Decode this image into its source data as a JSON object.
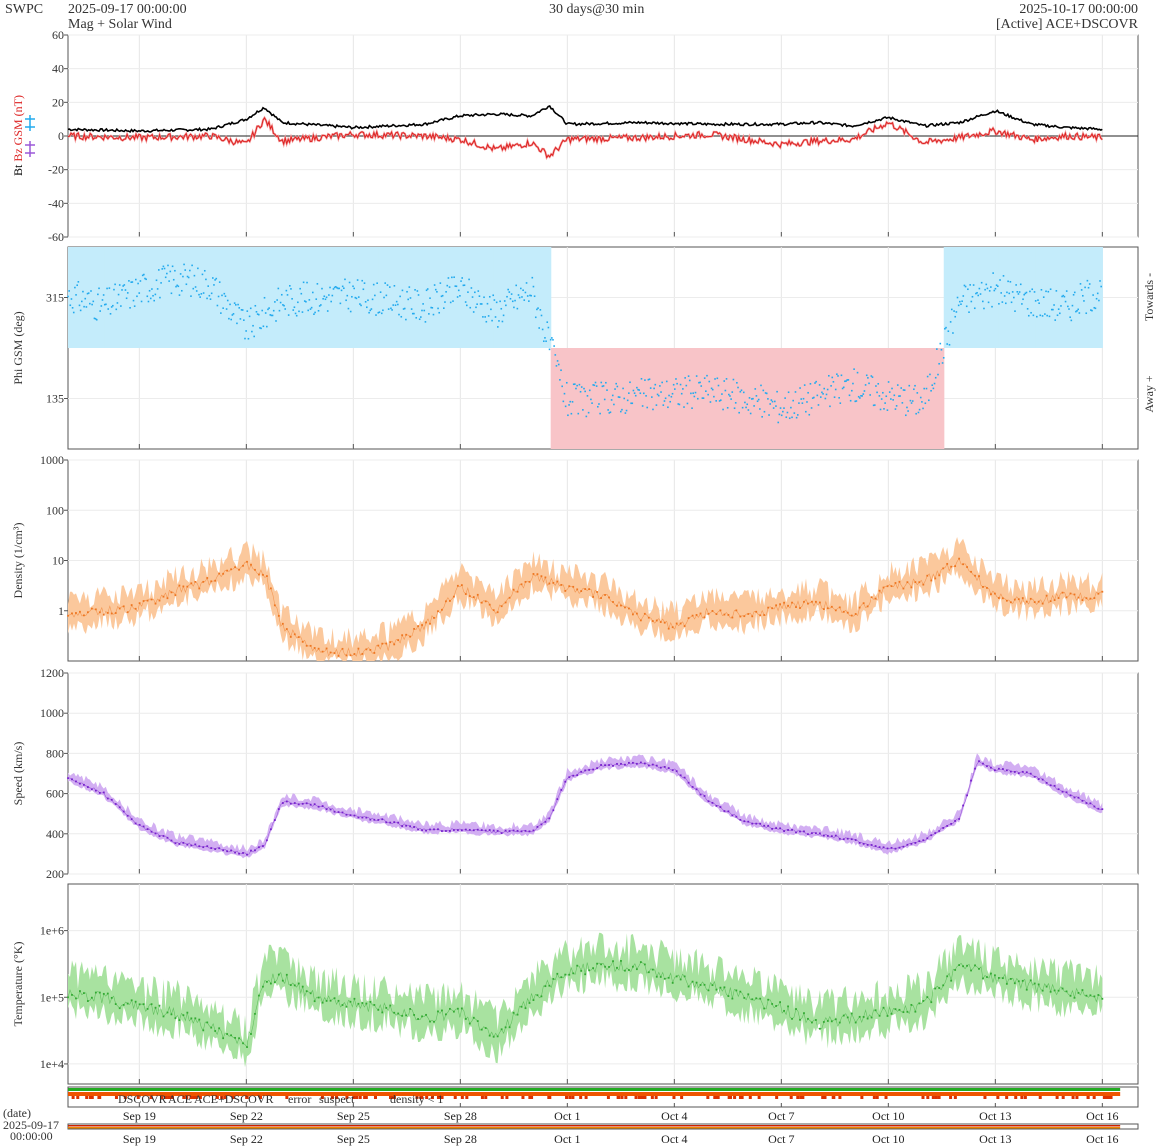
{
  "header": {
    "brand": "SWPC",
    "start_time": "2025-09-17 00:00:00",
    "subtitle": "Mag + Solar Wind",
    "span": "30 days@30 min",
    "end_time": "2025-10-17 00:00:00",
    "source": "[Active] ACE+DSCOVR"
  },
  "footer": {
    "date_label": "(date)",
    "start_date": "2025-09-17",
    "start_clock": "00:00:00",
    "legend": [
      {
        "label": "DSCOVR",
        "color": "#2222cc"
      },
      {
        "label": "ACE",
        "color": "#22aa22"
      },
      {
        "label": "ACE+DSCOVR",
        "color": "#cc22cc"
      },
      {
        "label": "error",
        "color": "#cc2200"
      },
      {
        "label": "suspect",
        "color": "#ffaa00"
      },
      {
        "label": "density < 1",
        "color": "#ff7700"
      }
    ]
  },
  "chart_data": [
    {
      "type": "line",
      "title": "",
      "ylabel_parts": [
        {
          "text": "Bt",
          "color": "#000000"
        },
        {
          "text": "Bz GSM (nT)",
          "color": "#dd2222"
        }
      ],
      "side_icons": [
        {
          "name": "Bx",
          "color": "#9a58d8"
        },
        {
          "name": "By",
          "color": "#22aaee"
        }
      ],
      "ylim": [
        -60,
        60
      ],
      "yticks": [
        "60",
        "40",
        "20",
        "0",
        "-20",
        "-40",
        "-60"
      ],
      "xlim": [
        "2025-09-17",
        "2025-10-17"
      ],
      "series": [
        {
          "name": "Bt",
          "color": "#000000",
          "x": [
            "2025-09-17",
            "2025-09-19",
            "2025-09-21",
            "2025-09-22",
            "2025-09-22T12:00",
            "2025-09-23",
            "2025-09-25",
            "2025-09-27",
            "2025-09-28",
            "2025-09-29",
            "2025-09-30",
            "2025-09-30T12:00",
            "2025-10-01",
            "2025-10-03",
            "2025-10-05",
            "2025-10-07",
            "2025-10-08",
            "2025-10-09",
            "2025-10-10",
            "2025-10-11",
            "2025-10-12",
            "2025-10-13",
            "2025-10-14",
            "2025-10-15",
            "2025-10-16"
          ],
          "values": [
            4,
            3,
            4,
            10,
            17,
            8,
            5,
            7,
            12,
            13,
            12,
            18,
            7,
            8,
            7,
            7,
            8,
            6,
            11,
            6,
            8,
            15,
            7,
            5,
            4
          ]
        },
        {
          "name": "Bz GSM",
          "color": "#dd2222",
          "x": [
            "2025-09-17",
            "2025-09-19",
            "2025-09-21",
            "2025-09-22",
            "2025-09-22T12:00",
            "2025-09-23",
            "2025-09-25",
            "2025-09-27",
            "2025-09-28",
            "2025-09-29",
            "2025-09-30",
            "2025-09-30T12:00",
            "2025-10-01",
            "2025-10-03",
            "2025-10-05",
            "2025-10-07",
            "2025-10-08",
            "2025-10-09",
            "2025-10-10",
            "2025-10-11",
            "2025-10-12",
            "2025-10-13",
            "2025-10-14",
            "2025-10-15",
            "2025-10-16"
          ],
          "values": [
            0,
            -1,
            0,
            -5,
            10,
            -3,
            1,
            0,
            -2,
            -8,
            -4,
            -12,
            -2,
            -1,
            1,
            -5,
            -3,
            -2,
            8,
            -4,
            -1,
            3,
            -2,
            0,
            -1
          ]
        }
      ]
    },
    {
      "type": "scatter",
      "title": "",
      "ylabel": "Phi GSM (deg)",
      "ylabel_color": "#22aaee",
      "right_labels": [
        "Towards -",
        "Away +"
      ],
      "ylim": [
        45,
        405
      ],
      "yticks": [
        "315",
        "135"
      ],
      "xlim": [
        "2025-09-17",
        "2025-10-17"
      ],
      "series": [
        {
          "name": "Phi GSM",
          "color": "#22aaee",
          "x": [
            "2025-09-17",
            "2025-09-18",
            "2025-09-19",
            "2025-09-20",
            "2025-09-21",
            "2025-09-22",
            "2025-09-23",
            "2025-09-25",
            "2025-09-27",
            "2025-09-28",
            "2025-09-29",
            "2025-09-30",
            "2025-10-01",
            "2025-10-03",
            "2025-10-05",
            "2025-10-07",
            "2025-10-09",
            "2025-10-10",
            "2025-10-11",
            "2025-10-12",
            "2025-10-13",
            "2025-10-14",
            "2025-10-15",
            "2025-10-16"
          ],
          "values": [
            320,
            300,
            330,
            350,
            340,
            260,
            310,
            320,
            300,
            330,
            290,
            330,
            130,
            140,
            150,
            120,
            160,
            140,
            130,
            310,
            330,
            310,
            300,
            330
          ]
        }
      ]
    },
    {
      "type": "area",
      "title": "",
      "ylabel": "Density (1/cm³)",
      "ylabel_color": "#ee7722",
      "scale": "log",
      "ylim": [
        0.1,
        1000
      ],
      "yticks": [
        "1000",
        "100",
        "10",
        "1"
      ],
      "xlim": [
        "2025-09-17",
        "2025-10-17"
      ],
      "series": [
        {
          "name": "Density",
          "color": "#ee7722",
          "x": [
            "2025-09-17",
            "2025-09-18",
            "2025-09-19",
            "2025-09-20",
            "2025-09-21",
            "2025-09-22",
            "2025-09-22T12:00",
            "2025-09-23",
            "2025-09-24",
            "2025-09-25",
            "2025-09-26",
            "2025-09-27",
            "2025-09-28",
            "2025-09-29",
            "2025-09-30",
            "2025-10-01",
            "2025-10-02",
            "2025-10-03",
            "2025-10-04",
            "2025-10-05",
            "2025-10-06",
            "2025-10-07",
            "2025-10-08",
            "2025-10-09",
            "2025-10-10",
            "2025-10-11",
            "2025-10-12",
            "2025-10-13",
            "2025-10-14",
            "2025-10-15",
            "2025-10-16"
          ],
          "values": [
            0.8,
            1.0,
            1.2,
            2.5,
            4.0,
            8.0,
            6.0,
            0.5,
            0.15,
            0.15,
            0.2,
            0.5,
            3.0,
            1.0,
            5.0,
            3.0,
            2.0,
            0.8,
            0.5,
            1.0,
            0.8,
            1.2,
            1.5,
            0.8,
            3.0,
            4.0,
            10.0,
            2.0,
            1.5,
            2.0,
            2.0
          ]
        }
      ]
    },
    {
      "type": "line",
      "title": "",
      "ylabel": "Speed (km/s)",
      "ylabel_color": "#9933cc",
      "ylim": [
        200,
        1200
      ],
      "yticks": [
        "1200",
        "1000",
        "800",
        "600",
        "400",
        "200"
      ],
      "xlim": [
        "2025-09-17",
        "2025-10-17"
      ],
      "series": [
        {
          "name": "Speed",
          "color": "#7722cc",
          "x": [
            "2025-09-17",
            "2025-09-18",
            "2025-09-19",
            "2025-09-20",
            "2025-09-21",
            "2025-09-22",
            "2025-09-22T12:00",
            "2025-09-23",
            "2025-09-24",
            "2025-09-25",
            "2025-09-26",
            "2025-09-27",
            "2025-09-28",
            "2025-09-29",
            "2025-09-30",
            "2025-09-30T12:00",
            "2025-10-01",
            "2025-10-02",
            "2025-10-03",
            "2025-10-04",
            "2025-10-05",
            "2025-10-06",
            "2025-10-07",
            "2025-10-08",
            "2025-10-09",
            "2025-10-10",
            "2025-10-11",
            "2025-10-12",
            "2025-10-12T12:00",
            "2025-10-13",
            "2025-10-14",
            "2025-10-15",
            "2025-10-16"
          ],
          "values": [
            680,
            600,
            440,
            360,
            330,
            300,
            340,
            560,
            540,
            490,
            460,
            420,
            420,
            410,
            410,
            480,
            680,
            740,
            750,
            720,
            560,
            460,
            420,
            400,
            370,
            320,
            370,
            480,
            760,
            720,
            700,
            600,
            520
          ]
        }
      ]
    },
    {
      "type": "area",
      "title": "",
      "ylabel": "Temperature (°K)",
      "ylabel_color": "#22aa22",
      "scale": "log",
      "ylim": [
        5000,
        5000000
      ],
      "yticks": [
        "1e+6",
        "1e+5",
        "1e+4"
      ],
      "xlim": [
        "2025-09-17",
        "2025-10-17"
      ],
      "series": [
        {
          "name": "Temperature",
          "color": "#33aa33",
          "x": [
            "2025-09-17",
            "2025-09-18",
            "2025-09-19",
            "2025-09-20",
            "2025-09-21",
            "2025-09-22",
            "2025-09-22T12:00",
            "2025-09-23",
            "2025-09-24",
            "2025-09-25",
            "2025-09-26",
            "2025-09-27",
            "2025-09-28",
            "2025-09-29",
            "2025-09-30",
            "2025-10-01",
            "2025-10-02",
            "2025-10-03",
            "2025-10-04",
            "2025-10-05",
            "2025-10-06",
            "2025-10-07",
            "2025-10-08",
            "2025-10-09",
            "2025-10-10",
            "2025-10-11",
            "2025-10-12",
            "2025-10-12T12:00",
            "2025-10-13",
            "2025-10-14",
            "2025-10-15",
            "2025-10-16"
          ],
          "values": [
            120000,
            100000,
            70000,
            60000,
            35000,
            18000,
            200000,
            200000,
            100000,
            80000,
            70000,
            50000,
            60000,
            25000,
            100000,
            250000,
            300000,
            300000,
            200000,
            150000,
            100000,
            70000,
            40000,
            50000,
            60000,
            80000,
            300000,
            250000,
            200000,
            150000,
            120000,
            100000
          ]
        }
      ]
    }
  ],
  "x_axis": {
    "tick_labels": [
      "Sep 19",
      "Sep 22",
      "Sep 25",
      "Sep 28",
      "Oct 1",
      "Oct 4",
      "Oct 7",
      "Oct 10",
      "Oct 13",
      "Oct 16"
    ],
    "tick_dates": [
      "2025-09-19",
      "2025-09-22",
      "2025-09-25",
      "2025-09-28",
      "2025-10-01",
      "2025-10-04",
      "2025-10-07",
      "2025-10-10",
      "2025-10-13",
      "2025-10-16"
    ]
  }
}
